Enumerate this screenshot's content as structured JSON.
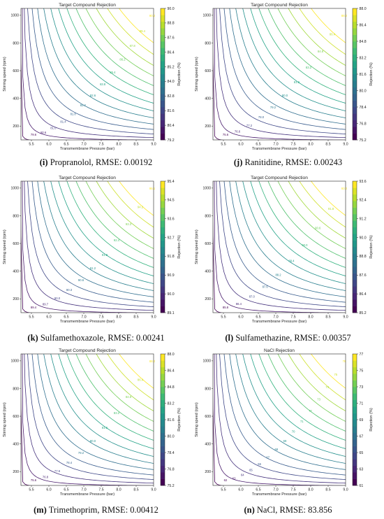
{
  "figure": {
    "panels": [
      {
        "letter": "(i)",
        "compound": "Propranolol",
        "rmse_label": "RMSE: 0.00192"
      },
      {
        "letter": "(j)",
        "compound": "Ranitidine",
        "rmse_label": "RMSE: 0.00243"
      },
      {
        "letter": "(k)",
        "compound": "Sulfamethoxazole",
        "rmse_label": "RMSE: 0.00241"
      },
      {
        "letter": "(l)",
        "compound": "Sulfamethazine",
        "rmse_label": "RMSE: 0.00357"
      },
      {
        "letter": "(m)",
        "compound": "Trimethoprim",
        "rmse_label": "RMSE: 0.00412"
      },
      {
        "letter": "(n)",
        "compound": "NaCl",
        "rmse_label": "RMSE: 83.856"
      }
    ]
  },
  "chart_data": [
    {
      "type": "contour",
      "title": "Target Compound Rejection",
      "xlabel": "Transmembrane Pressure (bar)",
      "ylabel": "Stirring speed (rpm)",
      "colorbar_label": "Rejection (%)",
      "xlim": [
        5.2,
        9.0
      ],
      "ylim": [
        100,
        1050
      ],
      "x_ticks": [
        "5.5",
        "6.0",
        "6.5",
        "7.0",
        "7.5",
        "8.0",
        "8.5",
        "9.0"
      ],
      "y_ticks": [
        "200",
        "400",
        "600",
        "800",
        "1000"
      ],
      "colorbar_ticks": [
        "79.2",
        "80.4",
        "81.6",
        "82.8",
        "84.0",
        "85.2",
        "86.4",
        "87.6",
        "88.8",
        "90.0"
      ],
      "contour_range": [
        79.2,
        90.6
      ],
      "contour_labels": [
        "79.6",
        "80.6",
        "81.0",
        "81.4",
        "81.8",
        "82.2",
        "82.6",
        "83.8",
        "85.4",
        "86.2",
        "87.8",
        "89.4",
        "90.2"
      ]
    },
    {
      "type": "contour",
      "title": "Target Compound Rejection",
      "xlabel": "Transmembrane Pressure (bar)",
      "ylabel": "Stirring speed (rpm)",
      "colorbar_label": "Rejection (%)",
      "xlim": [
        5.2,
        9.0
      ],
      "ylim": [
        100,
        1050
      ],
      "x_ticks": [
        "5.5",
        "6.0",
        "6.5",
        "7.0",
        "7.5",
        "8.0",
        "8.5",
        "9.0"
      ],
      "y_ticks": [
        "200",
        "400",
        "600",
        "800",
        "1000"
      ],
      "colorbar_ticks": [
        "75.2",
        "76.8",
        "78.4",
        "80.0",
        "81.6",
        "83.2",
        "84.8",
        "86.4",
        "88.0"
      ],
      "contour_range": [
        75.2,
        88.6
      ],
      "contour_labels": [
        "75.6",
        "76.6",
        "77.2",
        "78.0",
        "79.2",
        "80.0",
        "81.6",
        "83.2",
        "84.8",
        "86.4",
        "88.0"
      ]
    },
    {
      "type": "contour",
      "title": "Target Compound Rejection",
      "xlabel": "Transmembrane Pressure (bar)",
      "ylabel": "Stirring speed (rpm)",
      "colorbar_label": "Rejection (%)",
      "xlim": [
        5.2,
        9.0
      ],
      "ylim": [
        100,
        1050
      ],
      "x_ticks": [
        "5.5",
        "6.0",
        "6.5",
        "7.0",
        "7.5",
        "8.0",
        "8.5",
        "9.0"
      ],
      "y_ticks": [
        "200",
        "400",
        "600",
        "800",
        "1000"
      ],
      "colorbar_ticks": [
        "89.1",
        "90.0",
        "90.9",
        "91.8",
        "92.7",
        "93.6",
        "94.5",
        "95.4"
      ],
      "contour_range": [
        89.1,
        95.6
      ],
      "contour_labels": [
        "89.4",
        "89.7",
        "90.0",
        "90.3",
        "90.6",
        "91.2",
        "91.8",
        "92.4",
        "93.3",
        "94.2",
        "95.1"
      ]
    },
    {
      "type": "contour",
      "title": "Target Compound Rejection",
      "xlabel": "Transmembrane Pressure (bar)",
      "ylabel": "Stirring speed (rpm)",
      "colorbar_label": "Rejection (%)",
      "xlim": [
        5.2,
        9.0
      ],
      "ylim": [
        100,
        1050
      ],
      "x_ticks": [
        "5.5",
        "6.0",
        "6.5",
        "7.0",
        "7.5",
        "8.0",
        "8.5",
        "9.0"
      ],
      "y_ticks": [
        "200",
        "400",
        "600",
        "800",
        "1000"
      ],
      "colorbar_ticks": [
        "85.2",
        "86.4",
        "87.6",
        "88.8",
        "90.0",
        "91.2",
        "92.4",
        "93.6"
      ],
      "contour_range": [
        85.2,
        93.9
      ],
      "contour_labels": [
        "85.8",
        "86.4",
        "87.0",
        "87.6",
        "88.2",
        "89.4",
        "90.0",
        "90.6",
        "91.8",
        "93.0"
      ]
    },
    {
      "type": "contour",
      "title": "Target Compound Rejection",
      "xlabel": "Transmembrane Pressure (bar)",
      "ylabel": "Stirring speed (rpm)",
      "colorbar_label": "Rejection (%)",
      "xlim": [
        5.2,
        9.0
      ],
      "ylim": [
        100,
        1050
      ],
      "x_ticks": [
        "5.5",
        "6.0",
        "6.5",
        "7.0",
        "7.5",
        "8.0",
        "8.5",
        "9.0"
      ],
      "y_ticks": [
        "200",
        "400",
        "600",
        "800",
        "1000"
      ],
      "colorbar_ticks": [
        "75.2",
        "76.8",
        "78.4",
        "80.0",
        "81.6",
        "83.2",
        "84.8",
        "86.4",
        "88.0"
      ],
      "contour_range": [
        75.2,
        88.6
      ],
      "contour_labels": [
        "75.6",
        "76.8",
        "77.6",
        "78.4",
        "79.2",
        "80.0",
        "81.6",
        "83.2",
        "84.8",
        "86.4",
        "88.0"
      ]
    },
    {
      "type": "contour",
      "title": "NaCl Rejection",
      "xlabel": "Transmembrane Pressure (bar)",
      "ylabel": "Stirring speed (rpm)",
      "colorbar_label": "Rejection (%)",
      "xlim": [
        5.2,
        9.0
      ],
      "ylim": [
        100,
        1050
      ],
      "x_ticks": [
        "5.5",
        "6.0",
        "6.5",
        "7.0",
        "7.5",
        "8.0",
        "8.5",
        "9.0"
      ],
      "y_ticks": [
        "200",
        "400",
        "600",
        "800",
        "1000"
      ],
      "colorbar_ticks": [
        "61",
        "63",
        "65",
        "67",
        "69",
        "71",
        "73",
        "75",
        "77"
      ],
      "contour_range": [
        61,
        78
      ],
      "contour_labels": [
        "62",
        "63",
        "64",
        "65",
        "66",
        "67",
        "68",
        "69",
        "70",
        "71",
        "72",
        "73",
        "74",
        "75",
        "76"
      ]
    }
  ]
}
